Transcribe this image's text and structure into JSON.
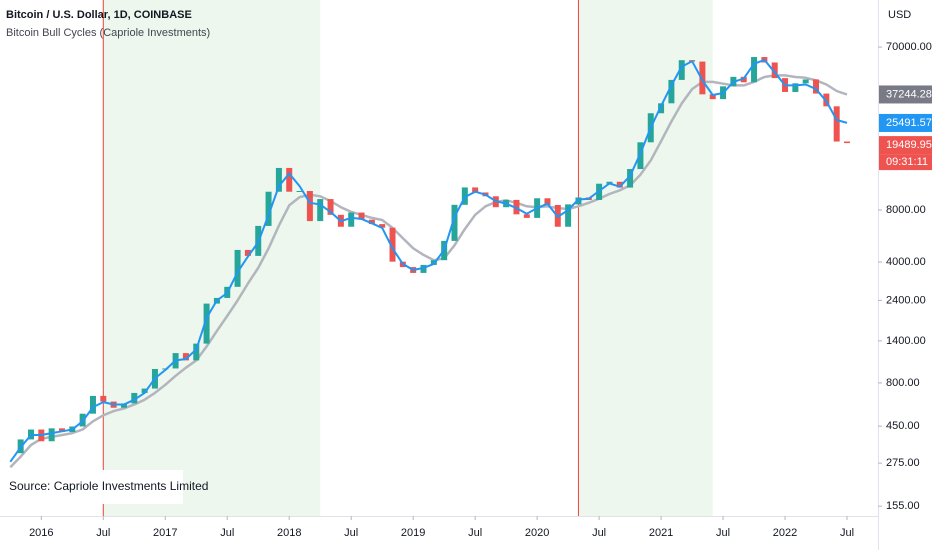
{
  "chart_data": {
    "type": "candlestick",
    "title": "Bitcoin / U.S. Dollar, 1D, COINBASE",
    "subtitle": "Bitcoin Bull Cycles (Capriole Investments)",
    "source": "Source: Capriole Investments Limited",
    "currency": "USD",
    "countdown": "09:31:11",
    "log_scale": true,
    "grid": false,
    "up_color": "#26a69a",
    "down_color": "#ef5350",
    "x": [
      "2015-10",
      "2015-11",
      "2015-12",
      "2016-01",
      "2016-02",
      "2016-03",
      "2016-04",
      "2016-05",
      "2016-06",
      "2016-07",
      "2016-08",
      "2016-09",
      "2016-10",
      "2016-11",
      "2016-12",
      "2017-01",
      "2017-02",
      "2017-03",
      "2017-04",
      "2017-05",
      "2017-06",
      "2017-07",
      "2017-08",
      "2017-09",
      "2017-10",
      "2017-11",
      "2017-12",
      "2018-01",
      "2018-02",
      "2018-03",
      "2018-04",
      "2018-05",
      "2018-06",
      "2018-07",
      "2018-08",
      "2018-09",
      "2018-10",
      "2018-11",
      "2018-12",
      "2019-01",
      "2019-02",
      "2019-03",
      "2019-04",
      "2019-05",
      "2019-06",
      "2019-07",
      "2019-08",
      "2019-09",
      "2019-10",
      "2019-11",
      "2019-12",
      "2020-01",
      "2020-02",
      "2020-03",
      "2020-04",
      "2020-05",
      "2020-06",
      "2020-07",
      "2020-08",
      "2020-09",
      "2020-10",
      "2020-11",
      "2020-12",
      "2021-01",
      "2021-02",
      "2021-03",
      "2021-04",
      "2021-05",
      "2021-06",
      "2021-07",
      "2021-08",
      "2021-09",
      "2021-10",
      "2021-11",
      "2021-12",
      "2022-01",
      "2022-02",
      "2022-03",
      "2022-04",
      "2022-05",
      "2022-06",
      "2022-07"
    ],
    "series": [
      {
        "color": "#131722",
        "values": [
          314,
          377,
          430,
          368,
          437,
          416,
          448,
          531,
          673,
          624,
          575,
          609,
          700,
          742,
          963,
          970,
          1190,
          1080,
          1350,
          2300,
          2480,
          2875,
          4700,
          4340,
          6470,
          10200,
          14000,
          10200,
          10300,
          6900,
          9250,
          7500,
          6400,
          7730,
          7030,
          6630,
          6320,
          4020,
          3740,
          3460,
          3850,
          4100,
          5300,
          8570,
          10800,
          10100,
          9600,
          8300,
          9150,
          7550,
          7200,
          9350,
          8550,
          6400,
          8620,
          9450,
          9140,
          11350,
          11650,
          10780,
          13800,
          19700,
          29000,
          33100,
          45200,
          58800,
          57700,
          37300,
          35000,
          41500,
          47100,
          43800,
          61300,
          57000,
          46300,
          38500,
          43200,
          45500,
          37700,
          31800,
          19900,
          19489.95
        ]
      },
      {
        "color": "#2196f3",
        "values": [
          280,
          340,
          400,
          400,
          410,
          420,
          430,
          480,
          580,
          620,
          600,
          600,
          640,
          700,
          850,
          950,
          1080,
          1100,
          1250,
          1900,
          2400,
          2650,
          3500,
          4300,
          5200,
          7500,
          11000,
          13000,
          11000,
          8800,
          8600,
          7800,
          6900,
          7200,
          7100,
          6700,
          6300,
          4800,
          3900,
          3600,
          3700,
          3900,
          4700,
          7300,
          9500,
          10200,
          9800,
          9000,
          8700,
          8200,
          7600,
          8200,
          8700,
          7300,
          8000,
          9200,
          9300,
          10300,
          11400,
          10900,
          12600,
          17000,
          24000,
          32000,
          42000,
          54000,
          58000,
          45000,
          37000,
          38000,
          44000,
          46000,
          56000,
          59000,
          50000,
          42000,
          42000,
          42500,
          40000,
          34000,
          26500,
          25491.57
        ]
      },
      {
        "color": "#b2b5be",
        "values": [
          260,
          300,
          350,
          380,
          390,
          400,
          410,
          430,
          480,
          520,
          550,
          570,
          600,
          640,
          700,
          780,
          880,
          980,
          1080,
          1300,
          1600,
          1950,
          2400,
          3000,
          3700,
          4800,
          6500,
          8500,
          9500,
          9800,
          9600,
          9000,
          8300,
          7800,
          7500,
          7200,
          7000,
          6300,
          5500,
          4800,
          4400,
          4100,
          4200,
          5000,
          6200,
          7500,
          8400,
          8900,
          9100,
          8800,
          8400,
          8300,
          8400,
          8200,
          8100,
          8400,
          8800,
          9300,
          9900,
          10400,
          11100,
          12800,
          15500,
          20000,
          26000,
          33000,
          40000,
          44000,
          44000,
          43000,
          42000,
          42000,
          44000,
          47000,
          48000,
          48000,
          47000,
          46500,
          45000,
          42500,
          39000,
          37244.28
        ]
      }
    ],
    "bull_cycles": [
      {
        "start": "2016-07",
        "end": "2018-04"
      },
      {
        "start": "2020-05",
        "end": "2021-06"
      }
    ],
    "cycle_color": "#4caf50",
    "cycle_line_color": "#f44336",
    "xlim": [
      "2015-09",
      "2022-10"
    ],
    "xticks": [
      {
        "value": "2016-01",
        "label": "2016"
      },
      {
        "value": "2016-07",
        "label": "Jul"
      },
      {
        "value": "2017-01",
        "label": "2017"
      },
      {
        "value": "2017-07",
        "label": "Jul"
      },
      {
        "value": "2018-01",
        "label": "2018"
      },
      {
        "value": "2018-07",
        "label": "Jul"
      },
      {
        "value": "2019-01",
        "label": "2019"
      },
      {
        "value": "2019-07",
        "label": "Jul"
      },
      {
        "value": "2020-01",
        "label": "2020"
      },
      {
        "value": "2020-07",
        "label": "Jul"
      },
      {
        "value": "2021-01",
        "label": "2021"
      },
      {
        "value": "2021-07",
        "label": "Jul"
      },
      {
        "value": "2022-01",
        "label": "2022"
      },
      {
        "value": "2022-07",
        "label": "Jul"
      }
    ],
    "ylim": [
      136,
      131000
    ],
    "yticks": [
      {
        "value": 155,
        "label": "155.00"
      },
      {
        "value": 275,
        "label": "275.00"
      },
      {
        "value": 450,
        "label": "450.00"
      },
      {
        "value": 800,
        "label": "800.00"
      },
      {
        "value": 1400,
        "label": "1400.00"
      },
      {
        "value": 2400,
        "label": "2400.00"
      },
      {
        "value": 4000,
        "label": "4000.00"
      },
      {
        "value": 8000,
        "label": "8000.00"
      },
      {
        "value": 70000,
        "label": "70000.00"
      }
    ]
  }
}
